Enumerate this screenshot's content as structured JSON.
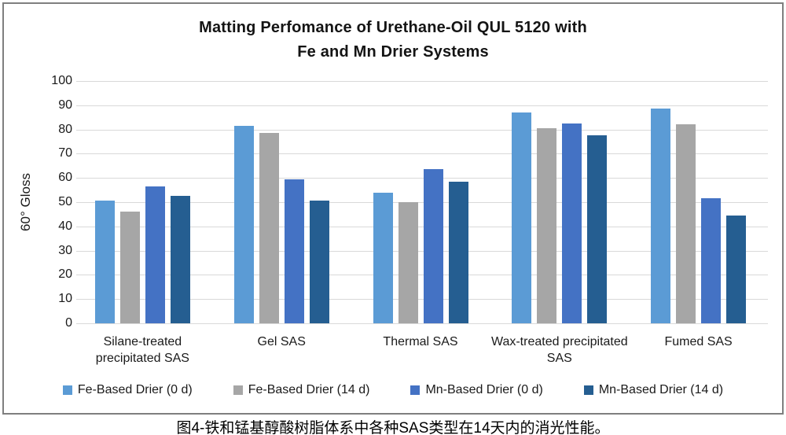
{
  "figure": {
    "caption": "图4-铁和锰基醇酸树脂体系中各种SAS类型在14天内的消光性能。"
  },
  "chart_data": {
    "type": "bar",
    "title": "Matting Perfomance of Urethane-Oil QUL 5120 with Fe and Mn Drier Systems",
    "title_lines": [
      "Matting Perfomance of Urethane-Oil QUL 5120 with",
      "Fe and Mn Drier Systems"
    ],
    "xlabel": "",
    "ylabel": "60° Gloss",
    "ylim": [
      0,
      100
    ],
    "ytick_step": 10,
    "grid": true,
    "legend_position": "bottom",
    "categories": [
      "Silane-treated precipitated SAS",
      "Gel SAS",
      "Thermal SAS",
      "Wax-treated precipitated SAS",
      "Fumed SAS"
    ],
    "series": [
      {
        "name": "Fe-Based Drier (0 d)",
        "color": "#5B9BD5",
        "values": [
          50.5,
          81.5,
          54.0,
          87.0,
          88.5
        ]
      },
      {
        "name": "Fe-Based Drier (14 d)",
        "color": "#A6A6A6",
        "values": [
          46.0,
          78.5,
          50.0,
          80.5,
          82.0
        ]
      },
      {
        "name": "Mn-Based Drier (0 d)",
        "color": "#4472C4",
        "values": [
          56.5,
          59.5,
          63.5,
          82.5,
          51.5
        ]
      },
      {
        "name": "Mn-Based Drier (14 d)",
        "color": "#255E91",
        "values": [
          52.5,
          50.5,
          58.5,
          77.5,
          44.5
        ]
      }
    ],
    "colors": {
      "gridline": "#D9D9D9",
      "frame_border": "#7F7F7F",
      "text": "#1a1a1a"
    }
  }
}
